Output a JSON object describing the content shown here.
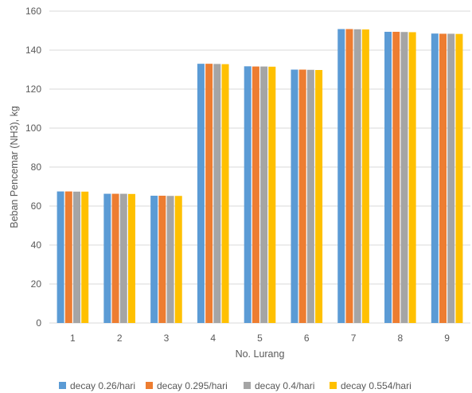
{
  "chart_data": {
    "type": "bar",
    "title": "",
    "xlabel": "No. Lurang",
    "ylabel": "Beban Pencemar (NH3), kg",
    "ylim": [
      0,
      160
    ],
    "yticks": [
      0,
      20,
      40,
      60,
      80,
      100,
      120,
      140,
      160
    ],
    "grid": true,
    "legend_position": "bottom",
    "categories": [
      "1",
      "2",
      "3",
      "4",
      "5",
      "6",
      "7",
      "8",
      "9"
    ],
    "series": [
      {
        "name": "decay 0.26/hari",
        "color": "#5b9bd5",
        "values": [
          67.5,
          66.3,
          65.3,
          133.0,
          131.7,
          130.0,
          150.8,
          149.4,
          148.5
        ]
      },
      {
        "name": "decay 0.295/hari",
        "color": "#ed7d31",
        "values": [
          67.5,
          66.3,
          65.3,
          133.0,
          131.6,
          130.0,
          150.8,
          149.4,
          148.4
        ]
      },
      {
        "name": "decay 0.4/hari",
        "color": "#a5a5a5",
        "values": [
          67.4,
          66.3,
          65.2,
          132.9,
          131.6,
          129.9,
          150.7,
          149.3,
          148.4
        ]
      },
      {
        "name": "decay 0.554/hari",
        "color": "#ffc000",
        "values": [
          67.4,
          66.2,
          65.2,
          132.8,
          131.5,
          129.8,
          150.6,
          149.2,
          148.3
        ]
      }
    ]
  }
}
